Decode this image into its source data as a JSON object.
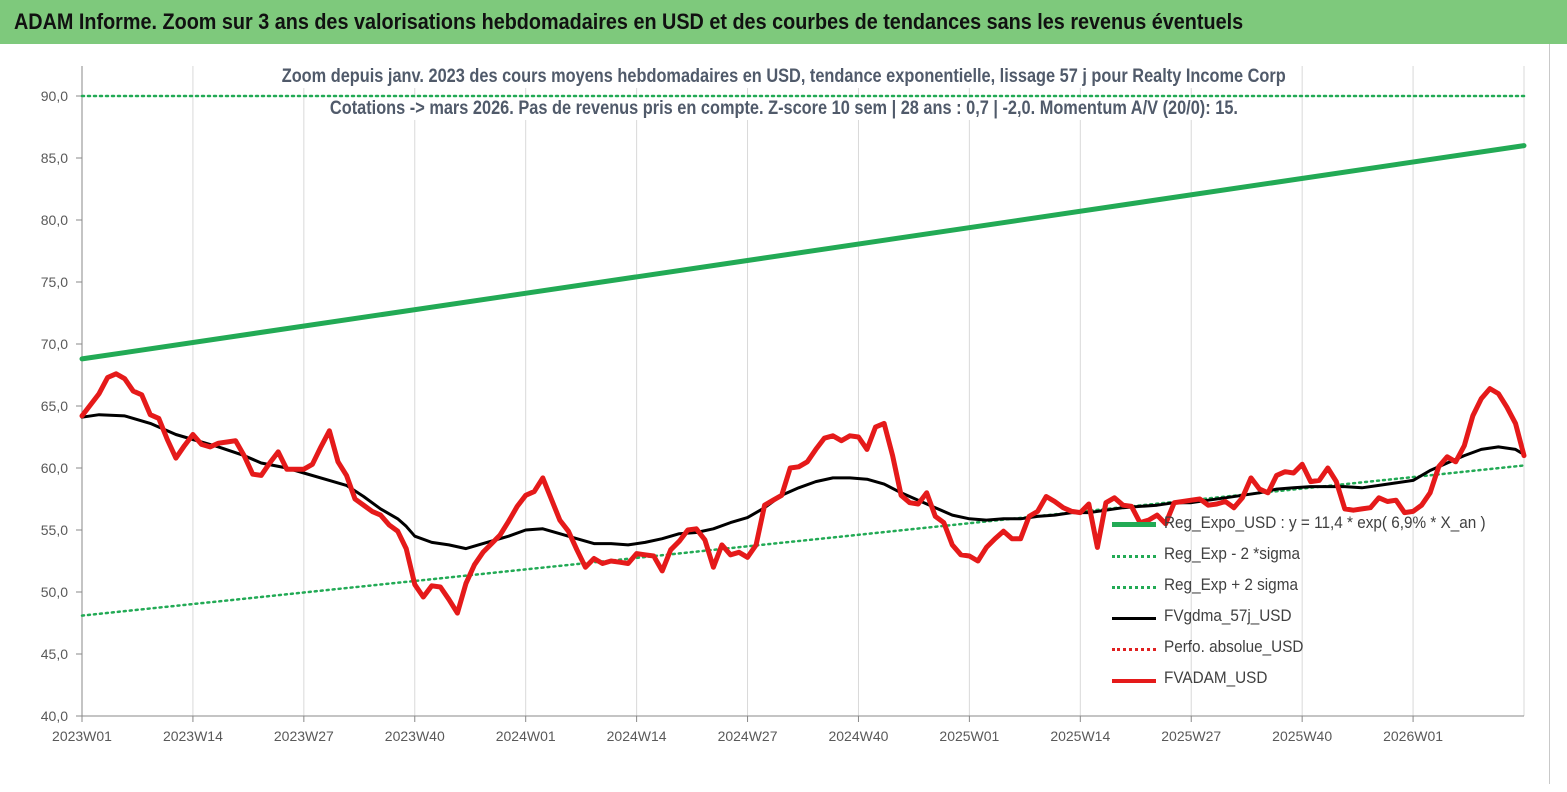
{
  "header": {
    "title": "ADAM Informe. Zoom sur 3 ans des valorisations hebdomadaires en USD et des courbes de tendances sans les revenus éventuels"
  },
  "chart_data": {
    "type": "line",
    "title": "Zoom depuis janv. 2023 des cours moyens hebdomadaires en USD, tendance exponentielle, lissage 57 j pour Realty Income Corp",
    "subtitle": "Cotations -> mars 2026. Pas de revenus pris en  compte. Z-score 10 sem  | 28 ans : 0,7  | -2,0. Momentum A/V (20/0): 15.",
    "xlabel": "",
    "ylabel": "",
    "ylim": [
      40,
      90
    ],
    "y_ticks": [
      "40,0",
      "45,0",
      "50,0",
      "55,0",
      "60,0",
      "65,0",
      "70,0",
      "75,0",
      "80,0",
      "85,0",
      "90,0"
    ],
    "x_ticks": [
      {
        "label": "2023W01",
        "week": 0
      },
      {
        "label": "2023W14",
        "week": 13
      },
      {
        "label": "2023W27",
        "week": 26
      },
      {
        "label": "2023W40",
        "week": 39
      },
      {
        "label": "2024W01",
        "week": 52
      },
      {
        "label": "2024W14",
        "week": 65
      },
      {
        "label": "2024W27",
        "week": 78
      },
      {
        "label": "2024W40",
        "week": 91
      },
      {
        "label": "2025W01",
        "week": 104
      },
      {
        "label": "2025W14",
        "week": 117
      },
      {
        "label": "2025W27",
        "week": 130
      },
      {
        "label": "2025W40",
        "week": 143
      },
      {
        "label": "2026W01",
        "week": 156
      }
    ],
    "x_max_week": 169,
    "grid": "vertical",
    "legend_position": "bottom-right",
    "series": [
      {
        "name": "Reg_Expo_USD : y = 11,4 * exp( 6,9% *  X_an )",
        "color": "#22aa55",
        "style": "solid-thick",
        "points": [
          [
            0,
            68.8
          ],
          [
            169,
            86.0
          ]
        ]
      },
      {
        "name": "Reg_Exp - 2 *sigma",
        "color": "#22aa55",
        "style": "dotted",
        "points": [
          [
            0,
            48.1
          ],
          [
            169,
            60.2
          ]
        ]
      },
      {
        "name": "Reg_Exp + 2 sigma",
        "color": "#22aa55",
        "style": "dotted",
        "points": [
          [
            0,
            90.0
          ],
          [
            169,
            90.0
          ]
        ]
      },
      {
        "name": "FVgdma_57j_USD",
        "color": "#000000",
        "style": "solid",
        "points": [
          [
            0,
            64.1
          ],
          [
            2,
            64.3
          ],
          [
            5,
            64.2
          ],
          [
            8,
            63.6
          ],
          [
            11,
            62.7
          ],
          [
            13,
            62.3
          ],
          [
            16,
            61.7
          ],
          [
            19,
            61.0
          ],
          [
            21,
            60.4
          ],
          [
            24,
            60.0
          ],
          [
            26,
            59.6
          ],
          [
            29,
            59.0
          ],
          [
            31,
            58.6
          ],
          [
            33,
            57.7
          ],
          [
            35,
            56.7
          ],
          [
            37,
            55.9
          ],
          [
            38,
            55.3
          ],
          [
            39,
            54.5
          ],
          [
            41,
            54.0
          ],
          [
            43,
            53.8
          ],
          [
            45,
            53.5
          ],
          [
            47,
            53.9
          ],
          [
            50,
            54.5
          ],
          [
            52,
            55.0
          ],
          [
            54,
            55.1
          ],
          [
            56,
            54.7
          ],
          [
            58,
            54.3
          ],
          [
            60,
            53.9
          ],
          [
            62,
            53.9
          ],
          [
            64,
            53.8
          ],
          [
            66,
            54.0
          ],
          [
            68,
            54.3
          ],
          [
            70,
            54.7
          ],
          [
            72,
            54.8
          ],
          [
            74,
            55.1
          ],
          [
            76,
            55.6
          ],
          [
            78,
            56.0
          ],
          [
            80,
            56.8
          ],
          [
            82,
            57.8
          ],
          [
            84,
            58.4
          ],
          [
            86,
            58.9
          ],
          [
            88,
            59.2
          ],
          [
            90,
            59.2
          ],
          [
            92,
            59.1
          ],
          [
            94,
            58.7
          ],
          [
            96,
            58.0
          ],
          [
            98,
            57.4
          ],
          [
            100,
            56.8
          ],
          [
            102,
            56.2
          ],
          [
            104,
            55.9
          ],
          [
            106,
            55.8
          ],
          [
            108,
            55.9
          ],
          [
            110,
            55.9
          ],
          [
            112,
            56.1
          ],
          [
            114,
            56.2
          ],
          [
            116,
            56.4
          ],
          [
            118,
            56.4
          ],
          [
            120,
            56.6
          ],
          [
            122,
            56.8
          ],
          [
            124,
            56.9
          ],
          [
            126,
            57.0
          ],
          [
            128,
            57.2
          ],
          [
            130,
            57.2
          ],
          [
            132,
            57.4
          ],
          [
            134,
            57.6
          ],
          [
            136,
            57.8
          ],
          [
            138,
            58.0
          ],
          [
            140,
            58.3
          ],
          [
            142,
            58.4
          ],
          [
            144,
            58.5
          ],
          [
            146,
            58.5
          ],
          [
            148,
            58.5
          ],
          [
            150,
            58.4
          ],
          [
            152,
            58.6
          ],
          [
            154,
            58.8
          ],
          [
            156,
            59.0
          ],
          [
            158,
            59.8
          ],
          [
            160,
            60.4
          ],
          [
            162,
            61.0
          ],
          [
            164,
            61.5
          ],
          [
            166,
            61.7
          ],
          [
            168,
            61.5
          ],
          [
            169,
            61.1
          ]
        ]
      },
      {
        "name": "Perfo. absolue_USD",
        "color": "#e02020",
        "style": "dotted",
        "points": []
      },
      {
        "name": "FVADAM_USD",
        "color": "#e51a1a",
        "style": "solid-thick",
        "points": [
          [
            0,
            64.2
          ],
          [
            2,
            66.0
          ],
          [
            3,
            67.3
          ],
          [
            4,
            67.6
          ],
          [
            5,
            67.2
          ],
          [
            6,
            66.2
          ],
          [
            7,
            65.9
          ],
          [
            8,
            64.3
          ],
          [
            9,
            64.0
          ],
          [
            10,
            62.3
          ],
          [
            11,
            60.8
          ],
          [
            12,
            61.8
          ],
          [
            13,
            62.7
          ],
          [
            14,
            61.9
          ],
          [
            15,
            61.7
          ],
          [
            16,
            62.0
          ],
          [
            17,
            62.1
          ],
          [
            18,
            62.2
          ],
          [
            19,
            61.0
          ],
          [
            20,
            59.5
          ],
          [
            21,
            59.4
          ],
          [
            22,
            60.4
          ],
          [
            23,
            61.3
          ],
          [
            24,
            59.9
          ],
          [
            25,
            59.9
          ],
          [
            26,
            59.9
          ],
          [
            27,
            60.3
          ],
          [
            28,
            61.7
          ],
          [
            29,
            63.0
          ],
          [
            30,
            60.5
          ],
          [
            31,
            59.4
          ],
          [
            32,
            57.5
          ],
          [
            33,
            57.0
          ],
          [
            34,
            56.5
          ],
          [
            35,
            56.2
          ],
          [
            36,
            55.4
          ],
          [
            37,
            54.9
          ],
          [
            38,
            53.5
          ],
          [
            39,
            50.6
          ],
          [
            40,
            49.6
          ],
          [
            41,
            50.5
          ],
          [
            42,
            50.4
          ],
          [
            43,
            49.4
          ],
          [
            44,
            48.3
          ],
          [
            45,
            50.7
          ],
          [
            46,
            52.2
          ],
          [
            47,
            53.2
          ],
          [
            48,
            53.9
          ],
          [
            49,
            54.6
          ],
          [
            50,
            55.7
          ],
          [
            51,
            56.9
          ],
          [
            52,
            57.8
          ],
          [
            53,
            58.1
          ],
          [
            54,
            59.2
          ],
          [
            55,
            57.5
          ],
          [
            56,
            55.8
          ],
          [
            57,
            54.9
          ],
          [
            58,
            53.4
          ],
          [
            59,
            52.0
          ],
          [
            60,
            52.7
          ],
          [
            61,
            52.3
          ],
          [
            62,
            52.5
          ],
          [
            63,
            52.4
          ],
          [
            64,
            52.3
          ],
          [
            65,
            53.1
          ],
          [
            66,
            53.0
          ],
          [
            67,
            52.9
          ],
          [
            68,
            51.7
          ],
          [
            69,
            53.4
          ],
          [
            70,
            54.1
          ],
          [
            71,
            55.0
          ],
          [
            72,
            55.1
          ],
          [
            73,
            54.2
          ],
          [
            74,
            52.0
          ],
          [
            75,
            53.8
          ],
          [
            76,
            53.0
          ],
          [
            77,
            53.2
          ],
          [
            78,
            52.8
          ],
          [
            79,
            53.8
          ],
          [
            80,
            57.0
          ],
          [
            81,
            57.4
          ],
          [
            82,
            57.8
          ],
          [
            83,
            60.0
          ],
          [
            84,
            60.1
          ],
          [
            85,
            60.5
          ],
          [
            86,
            61.5
          ],
          [
            87,
            62.4
          ],
          [
            88,
            62.6
          ],
          [
            89,
            62.2
          ],
          [
            90,
            62.6
          ],
          [
            91,
            62.5
          ],
          [
            92,
            61.5
          ],
          [
            93,
            63.3
          ],
          [
            94,
            63.6
          ],
          [
            95,
            61.0
          ],
          [
            96,
            57.8
          ],
          [
            97,
            57.2
          ],
          [
            98,
            57.1
          ],
          [
            99,
            58.0
          ],
          [
            100,
            56.1
          ],
          [
            101,
            55.6
          ],
          [
            102,
            53.8
          ],
          [
            103,
            53.0
          ],
          [
            104,
            52.9
          ],
          [
            105,
            52.5
          ],
          [
            106,
            53.6
          ],
          [
            107,
            54.3
          ],
          [
            108,
            54.9
          ],
          [
            109,
            54.3
          ],
          [
            110,
            54.3
          ],
          [
            111,
            56.1
          ],
          [
            112,
            56.5
          ],
          [
            113,
            57.7
          ],
          [
            114,
            57.3
          ],
          [
            115,
            56.8
          ],
          [
            116,
            56.5
          ],
          [
            117,
            56.4
          ],
          [
            118,
            57.1
          ],
          [
            119,
            53.6
          ],
          [
            120,
            57.2
          ],
          [
            121,
            57.6
          ],
          [
            122,
            57.0
          ],
          [
            123,
            56.9
          ],
          [
            124,
            55.6
          ],
          [
            125,
            55.8
          ],
          [
            126,
            56.2
          ],
          [
            127,
            55.5
          ],
          [
            128,
            57.2
          ],
          [
            129,
            57.3
          ],
          [
            130,
            57.4
          ],
          [
            131,
            57.5
          ],
          [
            132,
            57.0
          ],
          [
            133,
            57.1
          ],
          [
            134,
            57.3
          ],
          [
            135,
            56.8
          ],
          [
            136,
            57.6
          ],
          [
            137,
            59.2
          ],
          [
            138,
            58.3
          ],
          [
            139,
            58.0
          ],
          [
            140,
            59.4
          ],
          [
            141,
            59.7
          ],
          [
            142,
            59.6
          ],
          [
            143,
            60.3
          ],
          [
            144,
            58.9
          ],
          [
            145,
            59.0
          ],
          [
            146,
            60.0
          ],
          [
            147,
            58.9
          ],
          [
            148,
            56.7
          ],
          [
            149,
            56.6
          ],
          [
            150,
            56.7
          ],
          [
            151,
            56.8
          ],
          [
            152,
            57.6
          ],
          [
            153,
            57.3
          ],
          [
            154,
            57.4
          ],
          [
            155,
            56.4
          ],
          [
            156,
            56.5
          ],
          [
            157,
            57.0
          ],
          [
            158,
            58.0
          ],
          [
            159,
            60.1
          ],
          [
            160,
            60.9
          ],
          [
            161,
            60.5
          ],
          [
            162,
            61.8
          ],
          [
            163,
            64.2
          ],
          [
            164,
            65.6
          ],
          [
            165,
            66.4
          ],
          [
            166,
            66.0
          ],
          [
            167,
            64.9
          ],
          [
            168,
            63.6
          ],
          [
            169,
            61.0
          ]
        ]
      }
    ]
  },
  "legend": [
    {
      "label": "Reg_Expo_USD : y = 11,4 * exp( 6,9% *  X_an )",
      "color": "#22aa55",
      "style": "solid-thick"
    },
    {
      "label": "Reg_Exp - 2 *sigma",
      "color": "#22aa55",
      "style": "dotted"
    },
    {
      "label": "Reg_Exp + 2 sigma",
      "color": "#22aa55",
      "style": "dotted"
    },
    {
      "label": "FVgdma_57j_USD",
      "color": "#000000",
      "style": "solid"
    },
    {
      "label": "Perfo. absolue_USD",
      "color": "#e02020",
      "style": "dotted"
    },
    {
      "label": "FVADAM_USD",
      "color": "#e51a1a",
      "style": "solid-thick"
    }
  ],
  "colors": {
    "header_bg": "#7ec97c",
    "gridline": "#d9d9d9",
    "axis_text": "#595959"
  }
}
